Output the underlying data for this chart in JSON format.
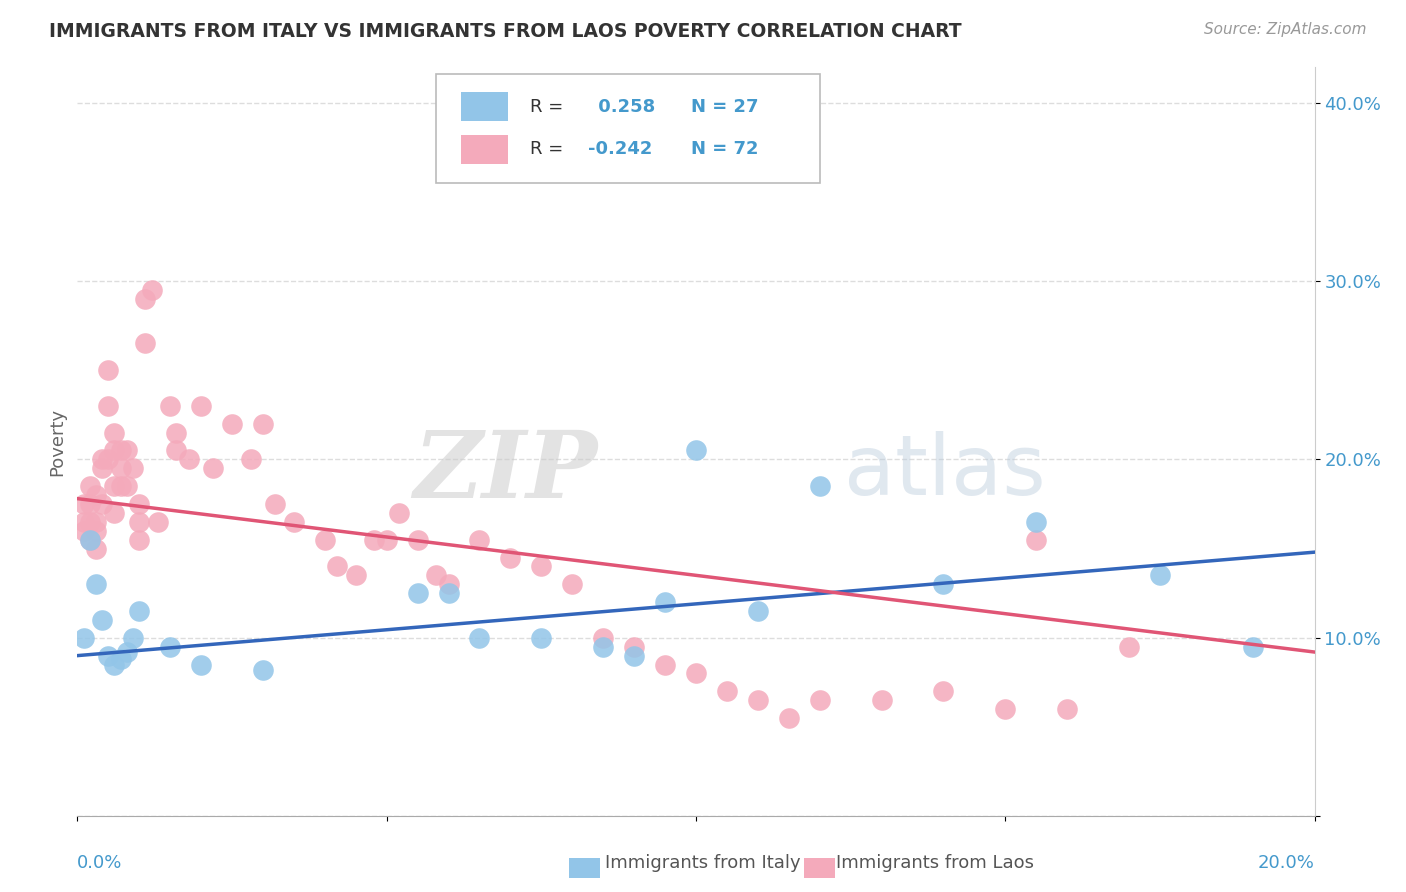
{
  "title": "IMMIGRANTS FROM ITALY VS IMMIGRANTS FROM LAOS POVERTY CORRELATION CHART",
  "source": "Source: ZipAtlas.com",
  "ylabel": "Poverty",
  "y_ticks": [
    0.0,
    0.1,
    0.2,
    0.3,
    0.4
  ],
  "y_tick_labels": [
    "",
    "10.0%",
    "20.0%",
    "30.0%",
    "40.0%"
  ],
  "xlim": [
    0.0,
    0.2
  ],
  "ylim": [
    0.0,
    0.42
  ],
  "italy_R": 0.258,
  "italy_N": 27,
  "laos_R": -0.242,
  "laos_N": 72,
  "italy_color": "#92C5E8",
  "laos_color": "#F4AABB",
  "italy_line_color": "#3366BB",
  "laos_line_color": "#E05575",
  "background_color": "#ffffff",
  "italy_line_x0": 0.0,
  "italy_line_y0": 0.09,
  "italy_line_x1": 0.2,
  "italy_line_y1": 0.148,
  "laos_line_x0": 0.0,
  "laos_line_y0": 0.178,
  "laos_line_x1": 0.2,
  "laos_line_y1": 0.092,
  "italy_x": [
    0.001,
    0.002,
    0.003,
    0.004,
    0.005,
    0.006,
    0.007,
    0.008,
    0.009,
    0.01,
    0.015,
    0.02,
    0.03,
    0.055,
    0.06,
    0.065,
    0.075,
    0.085,
    0.09,
    0.095,
    0.1,
    0.11,
    0.12,
    0.14,
    0.155,
    0.175,
    0.19
  ],
  "italy_y": [
    0.1,
    0.155,
    0.13,
    0.11,
    0.09,
    0.085,
    0.088,
    0.092,
    0.1,
    0.115,
    0.095,
    0.085,
    0.082,
    0.125,
    0.125,
    0.1,
    0.1,
    0.095,
    0.09,
    0.12,
    0.205,
    0.115,
    0.185,
    0.13,
    0.165,
    0.135,
    0.095
  ],
  "laos_x": [
    0.001,
    0.001,
    0.001,
    0.002,
    0.002,
    0.002,
    0.002,
    0.003,
    0.003,
    0.003,
    0.003,
    0.004,
    0.004,
    0.004,
    0.005,
    0.005,
    0.005,
    0.006,
    0.006,
    0.006,
    0.006,
    0.007,
    0.007,
    0.007,
    0.008,
    0.008,
    0.009,
    0.01,
    0.01,
    0.01,
    0.011,
    0.011,
    0.012,
    0.013,
    0.015,
    0.016,
    0.016,
    0.018,
    0.02,
    0.022,
    0.025,
    0.028,
    0.03,
    0.032,
    0.035,
    0.04,
    0.042,
    0.045,
    0.048,
    0.05,
    0.052,
    0.055,
    0.058,
    0.06,
    0.065,
    0.07,
    0.075,
    0.08,
    0.085,
    0.09,
    0.095,
    0.1,
    0.105,
    0.11,
    0.115,
    0.12,
    0.13,
    0.14,
    0.15,
    0.155,
    0.16,
    0.17
  ],
  "laos_y": [
    0.175,
    0.165,
    0.16,
    0.185,
    0.175,
    0.165,
    0.155,
    0.18,
    0.165,
    0.16,
    0.15,
    0.2,
    0.195,
    0.175,
    0.25,
    0.23,
    0.2,
    0.215,
    0.205,
    0.185,
    0.17,
    0.205,
    0.195,
    0.185,
    0.205,
    0.185,
    0.195,
    0.175,
    0.165,
    0.155,
    0.29,
    0.265,
    0.295,
    0.165,
    0.23,
    0.215,
    0.205,
    0.2,
    0.23,
    0.195,
    0.22,
    0.2,
    0.22,
    0.175,
    0.165,
    0.155,
    0.14,
    0.135,
    0.155,
    0.155,
    0.17,
    0.155,
    0.135,
    0.13,
    0.155,
    0.145,
    0.14,
    0.13,
    0.1,
    0.095,
    0.085,
    0.08,
    0.07,
    0.065,
    0.055,
    0.065,
    0.065,
    0.07,
    0.06,
    0.155,
    0.06,
    0.095
  ]
}
